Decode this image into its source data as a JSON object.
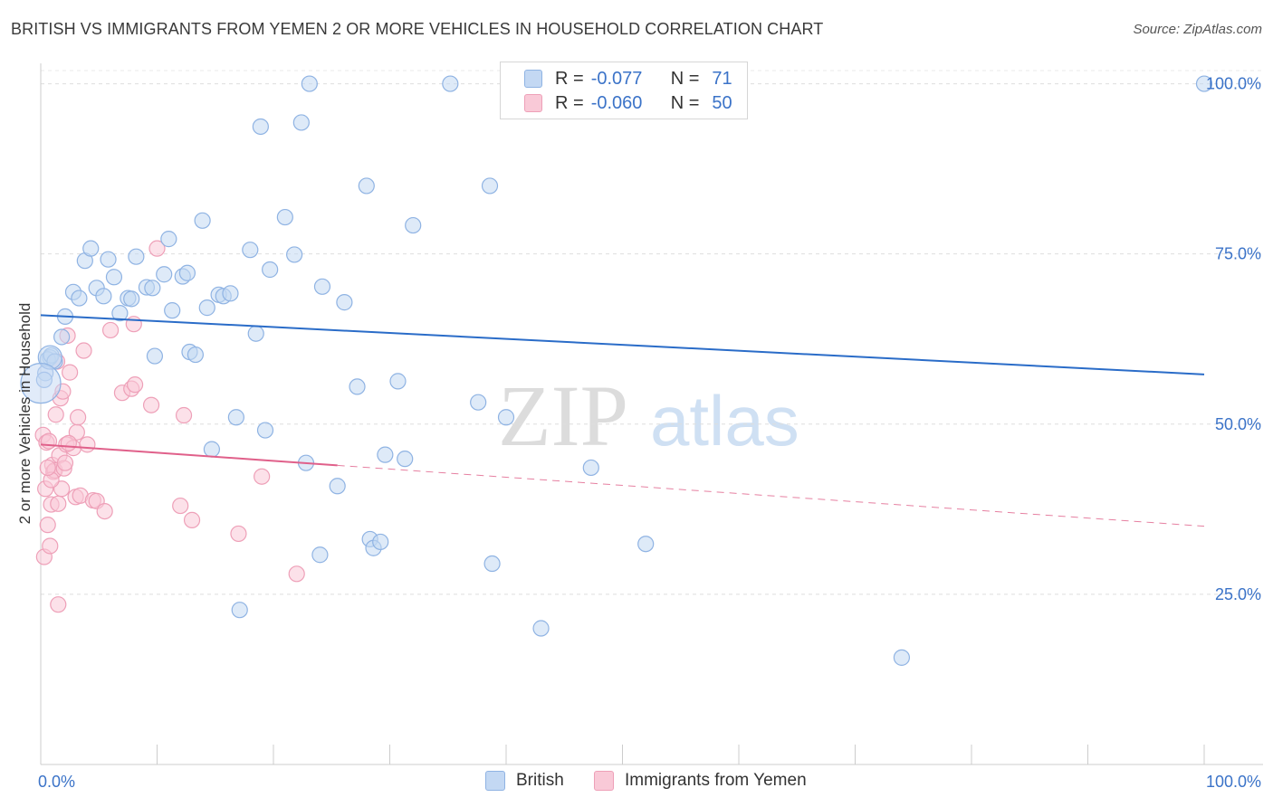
{
  "title": "BRITISH VS IMMIGRANTS FROM YEMEN 2 OR MORE VEHICLES IN HOUSEHOLD CORRELATION CHART",
  "source": "Source: ZipAtlas.com",
  "watermark": {
    "zip": "ZIP",
    "atlas": "atlas"
  },
  "legend": {
    "r_label": "R =",
    "n_label": "N =",
    "british": {
      "r": "-0.077",
      "n": "71"
    },
    "yemen": {
      "r": "-0.060",
      "n": "50"
    }
  },
  "colors": {
    "british": "#a8c8f0",
    "british_line": "#2a6cc8",
    "yemen": "#f7b8cb",
    "yemen_line": "#e0608a",
    "tick_label": "#3b73c8"
  },
  "chart_data": {
    "type": "scatter",
    "title": "BRITISH VS IMMIGRANTS FROM YEMEN 2 OR MORE VEHICLES IN HOUSEHOLD CORRELATION CHART",
    "xlabel": "",
    "ylabel": "2 or more Vehicles in Household",
    "xlim": [
      0,
      100
    ],
    "ylim": [
      0,
      103
    ],
    "x_tick_labels": [
      "0.0%",
      "100.0%"
    ],
    "y_ticks": [
      25,
      50,
      75,
      100
    ],
    "y_tick_labels": [
      "25.0%",
      "50.0%",
      "75.0%",
      "100.0%"
    ],
    "grid": true,
    "series": [
      {
        "name": "British",
        "trend": {
          "x0": 0,
          "y0": 66.0,
          "x1": 100,
          "y1": 57.3,
          "dash_from": null
        },
        "points": [
          [
            0.8,
            59.8
          ],
          [
            1.8,
            62.8
          ],
          [
            2.1,
            65.8
          ],
          [
            2.8,
            69.4
          ],
          [
            3.3,
            68.5
          ],
          [
            3.8,
            74.0
          ],
          [
            4.3,
            75.8
          ],
          [
            4.8,
            70.0
          ],
          [
            5.4,
            68.8
          ],
          [
            5.8,
            74.2
          ],
          [
            6.3,
            71.6
          ],
          [
            6.8,
            66.3
          ],
          [
            7.5,
            68.5
          ],
          [
            7.8,
            68.4
          ],
          [
            8.2,
            74.6
          ],
          [
            9.1,
            70.1
          ],
          [
            9.6,
            70.0
          ],
          [
            9.8,
            60.0
          ],
          [
            10.6,
            72.0
          ],
          [
            11.0,
            77.2
          ],
          [
            11.3,
            66.7
          ],
          [
            12.2,
            71.7
          ],
          [
            12.6,
            72.2
          ],
          [
            12.8,
            60.6
          ],
          [
            13.3,
            60.2
          ],
          [
            13.9,
            79.9
          ],
          [
            14.3,
            67.1
          ],
          [
            14.7,
            46.3
          ],
          [
            15.3,
            69.0
          ],
          [
            15.7,
            68.8
          ],
          [
            16.3,
            69.2
          ],
          [
            16.8,
            51.0
          ],
          [
            17.1,
            22.7
          ],
          [
            18.0,
            75.6
          ],
          [
            18.5,
            63.3
          ],
          [
            18.9,
            93.7
          ],
          [
            19.3,
            49.1
          ],
          [
            19.7,
            72.7
          ],
          [
            21.0,
            80.4
          ],
          [
            21.8,
            74.9
          ],
          [
            22.4,
            94.3
          ],
          [
            22.8,
            44.3
          ],
          [
            23.1,
            100.0
          ],
          [
            24.0,
            30.8
          ],
          [
            24.2,
            70.2
          ],
          [
            25.5,
            40.9
          ],
          [
            26.1,
            67.9
          ],
          [
            27.2,
            55.5
          ],
          [
            28.0,
            85.0
          ],
          [
            28.3,
            33.1
          ],
          [
            28.6,
            31.8
          ],
          [
            29.2,
            32.7
          ],
          [
            29.6,
            45.5
          ],
          [
            30.7,
            56.3
          ],
          [
            31.3,
            44.9
          ],
          [
            32.0,
            79.2
          ],
          [
            35.2,
            100.0
          ],
          [
            37.6,
            53.2
          ],
          [
            38.6,
            85.0
          ],
          [
            38.8,
            29.5
          ],
          [
            40.0,
            51.0
          ],
          [
            43.0,
            20.0
          ],
          [
            47.3,
            43.6
          ],
          [
            52.0,
            32.4
          ],
          [
            74.0,
            15.7
          ],
          [
            100.0,
            100.0
          ],
          [
            0.6,
            59.5
          ],
          [
            0.4,
            57.5
          ],
          [
            0.3,
            56.5
          ],
          [
            0.9,
            60.1
          ],
          [
            1.2,
            59.2
          ]
        ]
      },
      {
        "name": "Immigrants from Yemen",
        "trend": {
          "x0": 0,
          "y0": 47.0,
          "x1": 100,
          "y1": 35.0,
          "dash_from": 25.5
        },
        "points": [
          [
            0.2,
            48.4
          ],
          [
            0.3,
            30.5
          ],
          [
            0.4,
            40.5
          ],
          [
            0.5,
            47.3
          ],
          [
            0.6,
            35.2
          ],
          [
            0.7,
            47.5
          ],
          [
            0.8,
            32.1
          ],
          [
            0.9,
            38.2
          ],
          [
            1.0,
            44.0
          ],
          [
            1.1,
            43.0
          ],
          [
            1.2,
            43.2
          ],
          [
            1.3,
            51.4
          ],
          [
            1.4,
            59.2
          ],
          [
            1.5,
            38.3
          ],
          [
            1.6,
            45.4
          ],
          [
            1.7,
            53.8
          ],
          [
            1.8,
            40.5
          ],
          [
            1.9,
            54.8
          ],
          [
            2.0,
            43.5
          ],
          [
            2.1,
            44.3
          ],
          [
            2.2,
            47.0
          ],
          [
            2.3,
            63.0
          ],
          [
            2.5,
            57.6
          ],
          [
            2.8,
            46.5
          ],
          [
            3.0,
            39.3
          ],
          [
            3.1,
            48.8
          ],
          [
            3.2,
            51.0
          ],
          [
            3.4,
            39.5
          ],
          [
            3.7,
            60.8
          ],
          [
            4.0,
            47.0
          ],
          [
            4.5,
            38.8
          ],
          [
            4.8,
            38.7
          ],
          [
            5.5,
            37.2
          ],
          [
            6.0,
            63.8
          ],
          [
            7.0,
            54.6
          ],
          [
            7.8,
            55.2
          ],
          [
            8.0,
            64.7
          ],
          [
            8.1,
            55.8
          ],
          [
            9.5,
            52.8
          ],
          [
            10.0,
            75.8
          ],
          [
            12.0,
            38.0
          ],
          [
            12.3,
            51.3
          ],
          [
            13.0,
            35.9
          ],
          [
            17.0,
            33.9
          ],
          [
            19.0,
            42.3
          ],
          [
            22.0,
            28.0
          ],
          [
            1.5,
            23.5
          ],
          [
            0.9,
            41.8
          ],
          [
            0.6,
            43.6
          ],
          [
            2.4,
            47.2
          ]
        ]
      }
    ]
  }
}
